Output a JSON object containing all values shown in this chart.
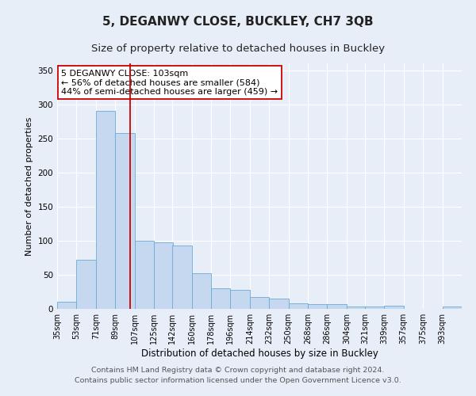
{
  "title": "5, DEGANWY CLOSE, BUCKLEY, CH7 3QB",
  "subtitle": "Size of property relative to detached houses in Buckley",
  "xlabel": "Distribution of detached houses by size in Buckley",
  "ylabel": "Number of detached properties",
  "footer_line1": "Contains HM Land Registry data © Crown copyright and database right 2024.",
  "footer_line2": "Contains public sector information licensed under the Open Government Licence v3.0.",
  "property_label": "5 DEGANWY CLOSE: 103sqm",
  "annotation_line2": "← 56% of detached houses are smaller (584)",
  "annotation_line3": "44% of semi-detached houses are larger (459) →",
  "bar_edges": [
    35,
    53,
    71,
    89,
    107,
    125,
    142,
    160,
    178,
    196,
    214,
    232,
    250,
    268,
    286,
    304,
    321,
    339,
    357,
    375,
    393
  ],
  "bar_heights": [
    10,
    72,
    290,
    258,
    100,
    97,
    93,
    52,
    30,
    28,
    17,
    15,
    8,
    7,
    7,
    4,
    4,
    5,
    0,
    0,
    3
  ],
  "bar_color": "#c5d8f0",
  "bar_edge_color": "#6aaad4",
  "vline_color": "#cc0000",
  "vline_x": 103,
  "ylim": [
    0,
    360
  ],
  "yticks": [
    0,
    50,
    100,
    150,
    200,
    250,
    300,
    350
  ],
  "background_color": "#e8eef8",
  "plot_bg_color": "#e8eef8",
  "grid_color": "#ffffff",
  "annotation_box_color": "#ffffff",
  "annotation_border_color": "#cc0000",
  "title_fontsize": 11,
  "subtitle_fontsize": 9.5,
  "tick_label_fontsize": 7,
  "ylabel_fontsize": 8,
  "xlabel_fontsize": 8.5,
  "footer_fontsize": 6.8,
  "annotation_fontsize": 8
}
